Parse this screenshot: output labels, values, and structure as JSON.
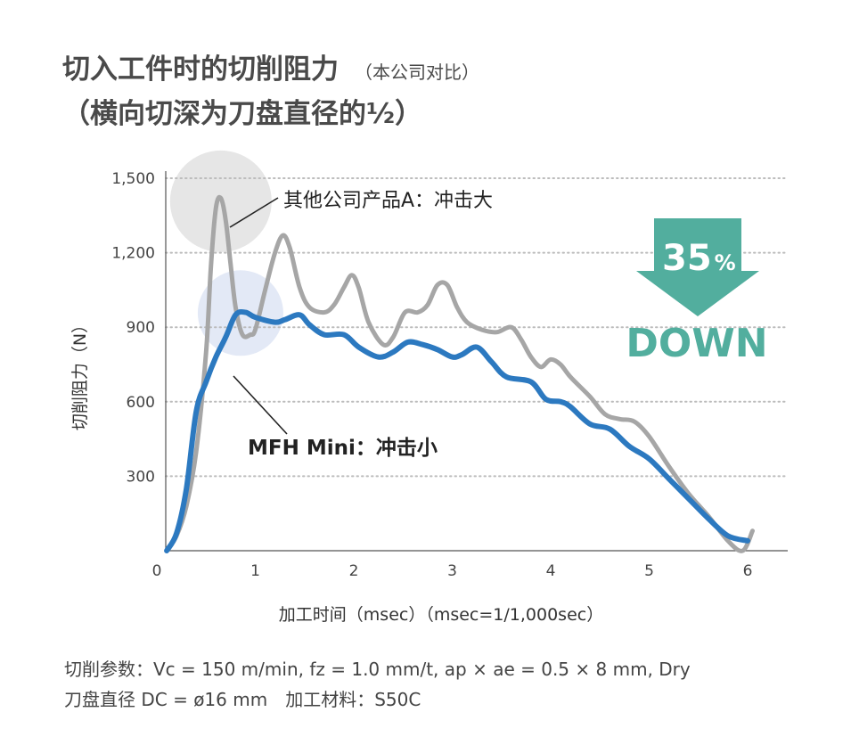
{
  "header": {
    "title_line1": "切入工件时的切削阻力",
    "title_note": "（本公司对比）",
    "title_line2": "（横向切深为刀盘直径的½）"
  },
  "chart_data": {
    "type": "line",
    "xlabel": "加工时间（msec）（msec=1/1,000sec）",
    "ylabel": "切削阻力（N）",
    "xlim": [
      0,
      6.2
    ],
    "ylim": [
      0,
      1500
    ],
    "xticks": [
      0,
      1,
      2,
      3,
      4,
      5,
      6
    ],
    "xtick_labels": [
      "0",
      "1",
      "2",
      "3",
      "4",
      "5",
      "6"
    ],
    "yticks": [
      300,
      600,
      900,
      1200,
      1500
    ],
    "ytick_labels": [
      "300",
      "600",
      "900",
      "1,200",
      "1,500"
    ],
    "grid": "horizontal-dotted",
    "series": [
      {
        "name": "其他公司产品A：冲击大",
        "color": "#a6a6a6",
        "points": [
          [
            0.1,
            0
          ],
          [
            0.2,
            60
          ],
          [
            0.3,
            180
          ],
          [
            0.4,
            400
          ],
          [
            0.5,
            800
          ],
          [
            0.55,
            1150
          ],
          [
            0.6,
            1380
          ],
          [
            0.65,
            1420
          ],
          [
            0.7,
            1330
          ],
          [
            0.75,
            1150
          ],
          [
            0.8,
            980
          ],
          [
            0.87,
            870
          ],
          [
            0.95,
            870
          ],
          [
            1.0,
            890
          ],
          [
            1.1,
            1050
          ],
          [
            1.2,
            1200
          ],
          [
            1.28,
            1270
          ],
          [
            1.35,
            1220
          ],
          [
            1.45,
            1060
          ],
          [
            1.55,
            980
          ],
          [
            1.7,
            960
          ],
          [
            1.8,
            990
          ],
          [
            1.9,
            1060
          ],
          [
            1.98,
            1110
          ],
          [
            2.05,
            1060
          ],
          [
            2.15,
            920
          ],
          [
            2.3,
            830
          ],
          [
            2.4,
            860
          ],
          [
            2.52,
            960
          ],
          [
            2.65,
            960
          ],
          [
            2.75,
            990
          ],
          [
            2.85,
            1070
          ],
          [
            2.95,
            1070
          ],
          [
            3.05,
            980
          ],
          [
            3.15,
            920
          ],
          [
            3.3,
            890
          ],
          [
            3.45,
            880
          ],
          [
            3.6,
            900
          ],
          [
            3.7,
            850
          ],
          [
            3.8,
            780
          ],
          [
            3.9,
            740
          ],
          [
            4.0,
            770
          ],
          [
            4.1,
            750
          ],
          [
            4.2,
            700
          ],
          [
            4.4,
            620
          ],
          [
            4.55,
            550
          ],
          [
            4.7,
            530
          ],
          [
            4.85,
            520
          ],
          [
            5.0,
            460
          ],
          [
            5.2,
            340
          ],
          [
            5.4,
            230
          ],
          [
            5.6,
            140
          ],
          [
            5.8,
            40
          ],
          [
            5.95,
            0
          ],
          [
            6.05,
            80
          ]
        ]
      },
      {
        "name": "MFH Mini：冲击小",
        "color": "#2c79c0",
        "points": [
          [
            0.1,
            0
          ],
          [
            0.2,
            70
          ],
          [
            0.3,
            250
          ],
          [
            0.4,
            560
          ],
          [
            0.5,
            680
          ],
          [
            0.6,
            780
          ],
          [
            0.7,
            860
          ],
          [
            0.8,
            950
          ],
          [
            0.9,
            960
          ],
          [
            1.0,
            940
          ],
          [
            1.2,
            920
          ],
          [
            1.3,
            930
          ],
          [
            1.45,
            950
          ],
          [
            1.55,
            910
          ],
          [
            1.7,
            870
          ],
          [
            1.9,
            870
          ],
          [
            2.05,
            820
          ],
          [
            2.25,
            780
          ],
          [
            2.4,
            800
          ],
          [
            2.55,
            840
          ],
          [
            2.7,
            830
          ],
          [
            2.85,
            810
          ],
          [
            3.0,
            780
          ],
          [
            3.1,
            790
          ],
          [
            3.25,
            820
          ],
          [
            3.4,
            760
          ],
          [
            3.55,
            700
          ],
          [
            3.8,
            680
          ],
          [
            3.95,
            610
          ],
          [
            4.1,
            600
          ],
          [
            4.2,
            580
          ],
          [
            4.4,
            510
          ],
          [
            4.6,
            490
          ],
          [
            4.8,
            420
          ],
          [
            5.0,
            370
          ],
          [
            5.2,
            290
          ],
          [
            5.4,
            210
          ],
          [
            5.6,
            130
          ],
          [
            5.8,
            60
          ],
          [
            6.0,
            40
          ]
        ]
      }
    ],
    "annotations": {
      "competitor_label": "其他公司产品A：冲击大",
      "mfh_label": "MFH Mini：冲击小",
      "badge_percent": "35",
      "badge_percent_symbol": "%",
      "badge_down": "DOWN"
    },
    "highlight_points": [
      {
        "series": "其他公司产品A：冲击大",
        "x": 0.65,
        "y": 1400,
        "color": "#e6e6e6"
      },
      {
        "series": "MFH Mini：冲击小",
        "x": 0.85,
        "y": 950,
        "color": "#e3e9f6"
      }
    ],
    "badge_color": "#52ae9e"
  },
  "conditions": {
    "line1": "切削参数：Vc = 150 m/min, fz = 1.0 mm/t, ap × ae = 0.5 × 8 mm, Dry",
    "line2": "刀盘直径 DC = ø16 mm　加工材料：S50C"
  }
}
